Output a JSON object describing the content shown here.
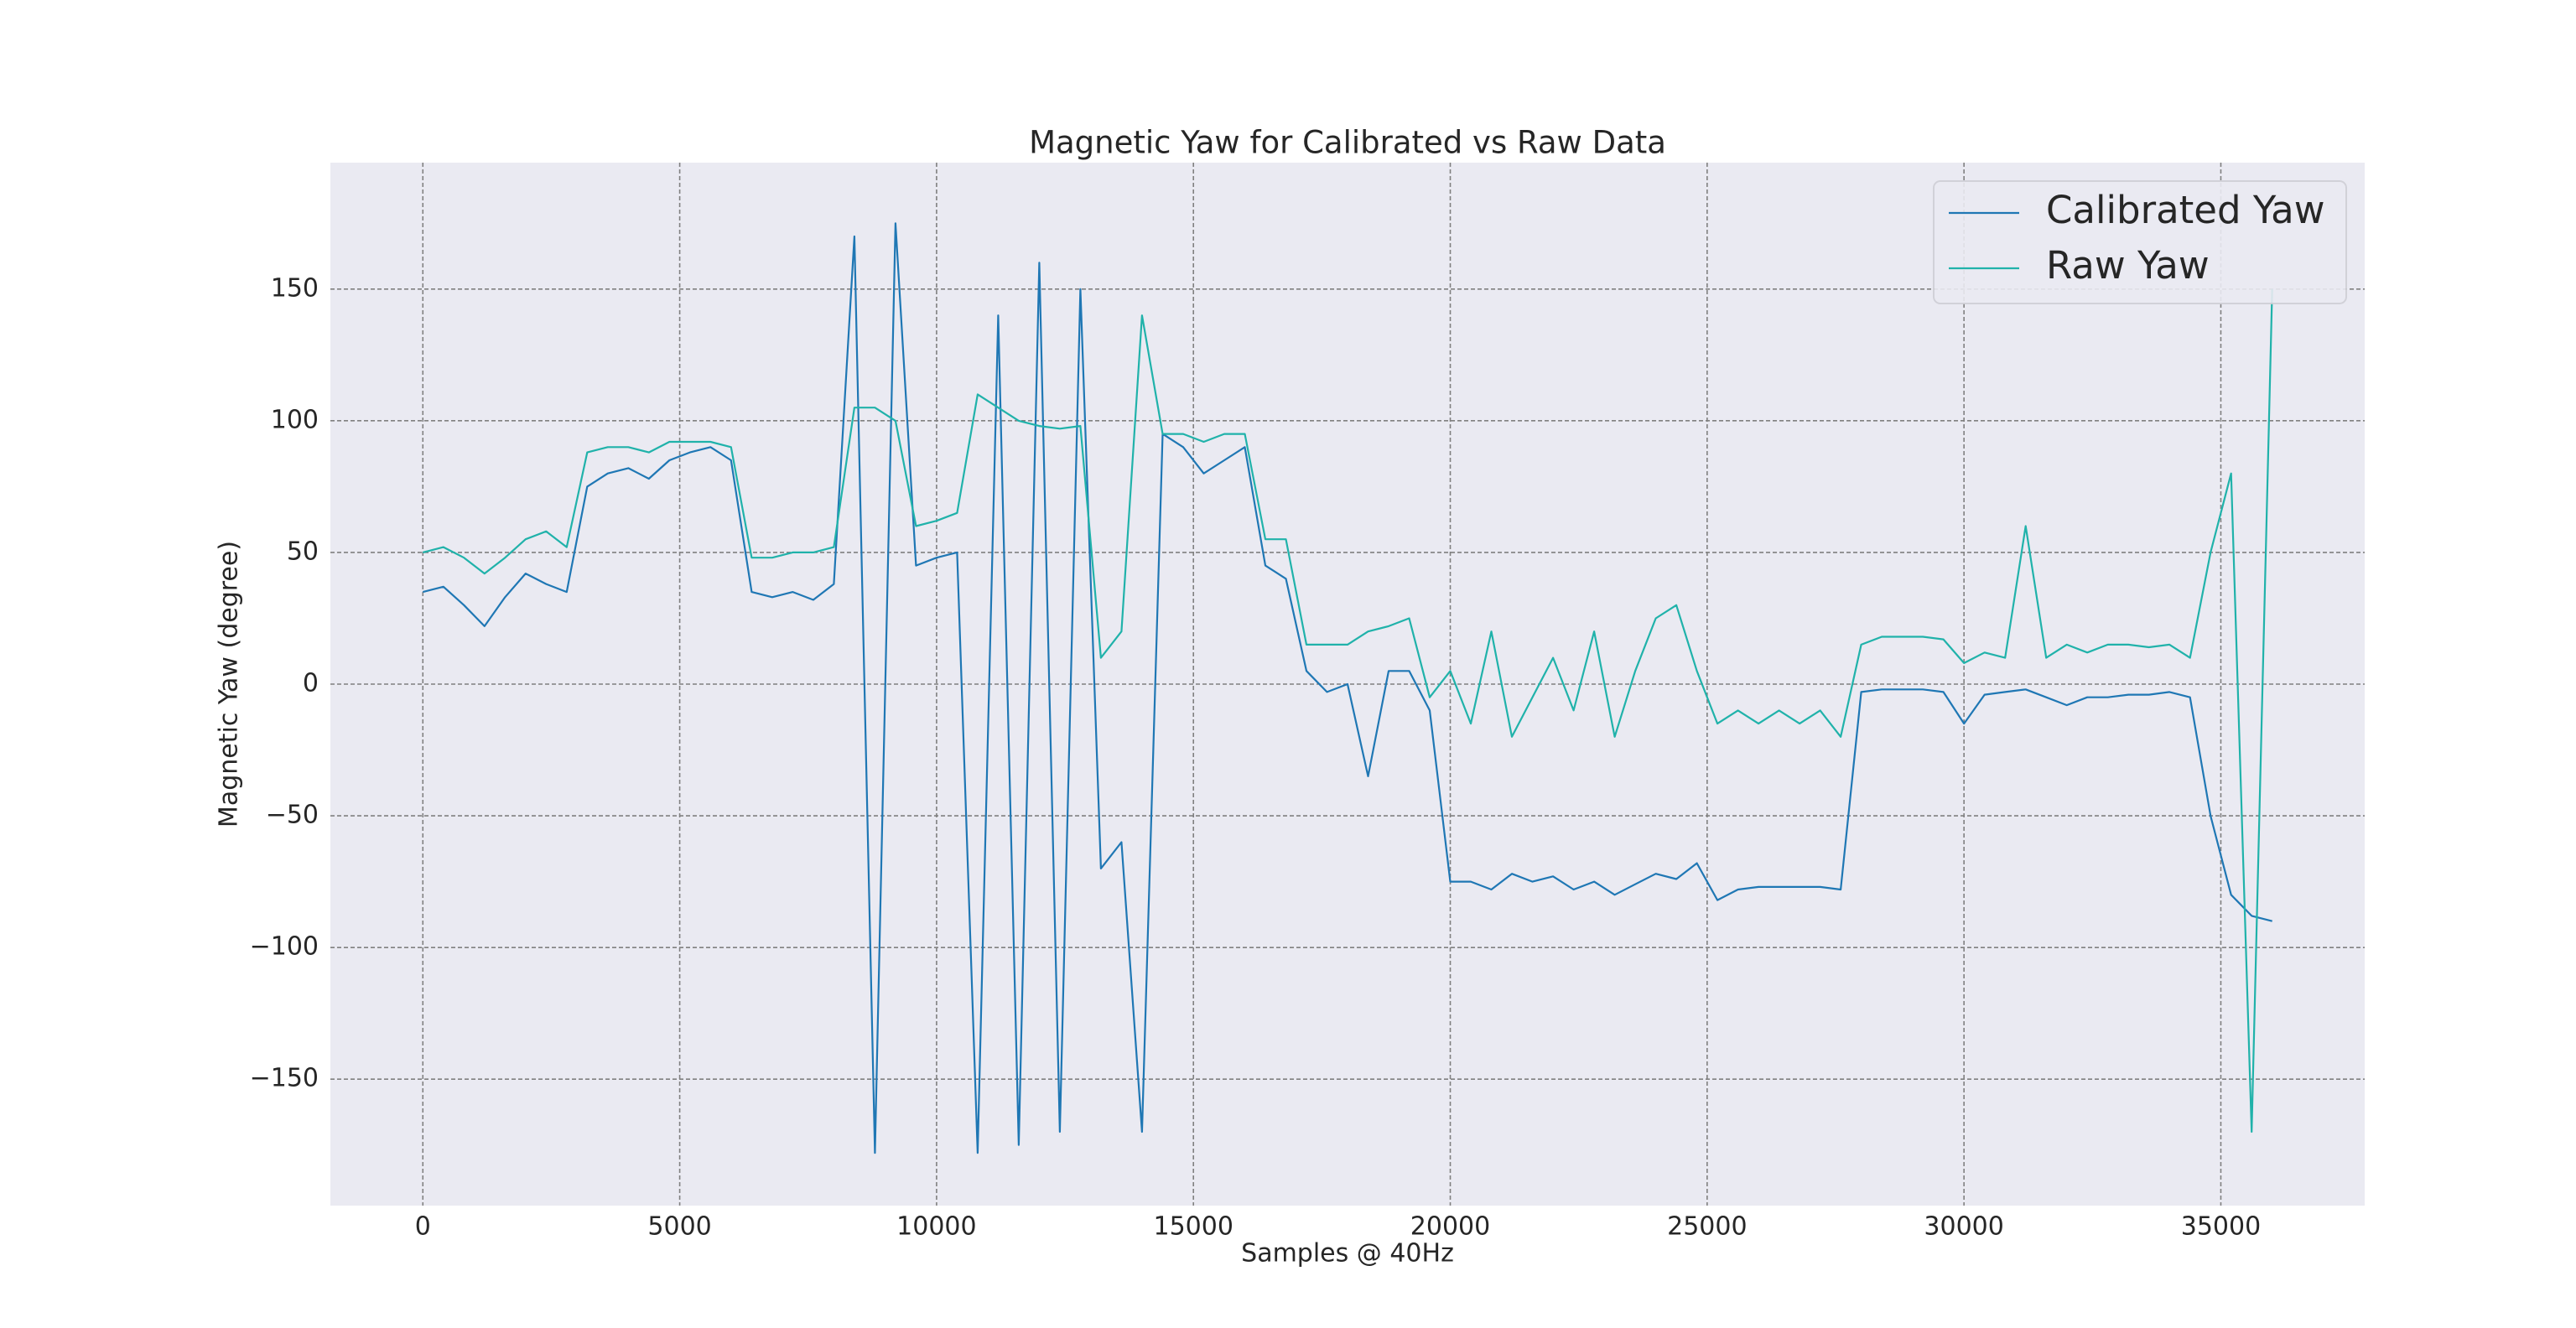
{
  "chart_data": {
    "type": "line",
    "title": "Magnetic Yaw for Calibrated vs Raw Data",
    "x_label": "Samples @ 40Hz",
    "y_label": "Magnetic Yaw (degree)",
    "x": [
      0,
      400,
      800,
      1200,
      1600,
      2000,
      2400,
      2800,
      3200,
      3600,
      4000,
      4400,
      4800,
      5200,
      5600,
      6000,
      6400,
      6800,
      7200,
      7600,
      8000,
      8400,
      8800,
      9200,
      9600,
      10000,
      10400,
      10800,
      11200,
      11600,
      12000,
      12400,
      12800,
      13200,
      13600,
      14000,
      14400,
      14800,
      15200,
      15600,
      16000,
      16400,
      16800,
      17200,
      17600,
      18000,
      18400,
      18800,
      19200,
      19600,
      20000,
      20400,
      20800,
      21200,
      21600,
      22000,
      22400,
      22800,
      23200,
      23600,
      24000,
      24400,
      24800,
      25200,
      25600,
      26000,
      26400,
      26800,
      27200,
      27600,
      28000,
      28400,
      28800,
      29200,
      29600,
      30000,
      30400,
      30800,
      31200,
      31600,
      32000,
      32400,
      32800,
      33200,
      33600,
      34000,
      34400,
      34800,
      35200,
      35600,
      36000
    ],
    "series": [
      {
        "name": "Calibrated Yaw",
        "color": "#1f77b4",
        "values": [
          35,
          37,
          30,
          22,
          33,
          42,
          38,
          35,
          75,
          80,
          82,
          78,
          85,
          88,
          90,
          85,
          35,
          33,
          35,
          32,
          38,
          170,
          -178,
          175,
          45,
          48,
          50,
          -178,
          140,
          -175,
          160,
          -170,
          150,
          -70,
          -60,
          -170,
          95,
          90,
          80,
          85,
          90,
          45,
          40,
          5,
          -3,
          0,
          -35,
          5,
          5,
          -10,
          -75,
          -75,
          -78,
          -72,
          -75,
          -73,
          -78,
          -75,
          -80,
          -76,
          -72,
          -74,
          -68,
          -82,
          -78,
          -77,
          -77,
          -77,
          -77,
          -78,
          -3,
          -2,
          -2,
          -2,
          -3,
          -15,
          -4,
          -3,
          -2,
          -5,
          -8,
          -5,
          -5,
          -4,
          -4,
          -3,
          -5,
          -50,
          -80,
          -88,
          -90
        ]
      },
      {
        "name": "Raw Yaw",
        "color": "#20b2aa",
        "values": [
          50,
          52,
          48,
          42,
          48,
          55,
          58,
          52,
          88,
          90,
          90,
          88,
          92,
          92,
          92,
          90,
          48,
          48,
          50,
          50,
          52,
          105,
          105,
          100,
          60,
          62,
          65,
          110,
          105,
          100,
          98,
          97,
          98,
          10,
          20,
          140,
          95,
          95,
          92,
          95,
          95,
          55,
          55,
          15,
          15,
          15,
          20,
          22,
          25,
          -5,
          5,
          -15,
          20,
          -20,
          -5,
          10,
          -10,
          20,
          -20,
          5,
          25,
          30,
          5,
          -15,
          -10,
          -15,
          -10,
          -15,
          -10,
          -20,
          15,
          18,
          18,
          18,
          17,
          8,
          12,
          10,
          60,
          10,
          15,
          12,
          15,
          15,
          14,
          15,
          10,
          50,
          80,
          -170,
          150
        ]
      }
    ],
    "xlim": [
      -1800,
      37800
    ],
    "ylim": [
      -198,
      198
    ],
    "xticks": [
      0,
      5000,
      10000,
      15000,
      20000,
      25000,
      30000,
      35000
    ],
    "yticks": [
      {
        "value": -150,
        "label": "−150"
      },
      {
        "value": -100,
        "label": "−100"
      },
      {
        "value": -50,
        "label": "−50"
      },
      0,
      50,
      100,
      150
    ],
    "grid": true,
    "legend": "upper right"
  }
}
